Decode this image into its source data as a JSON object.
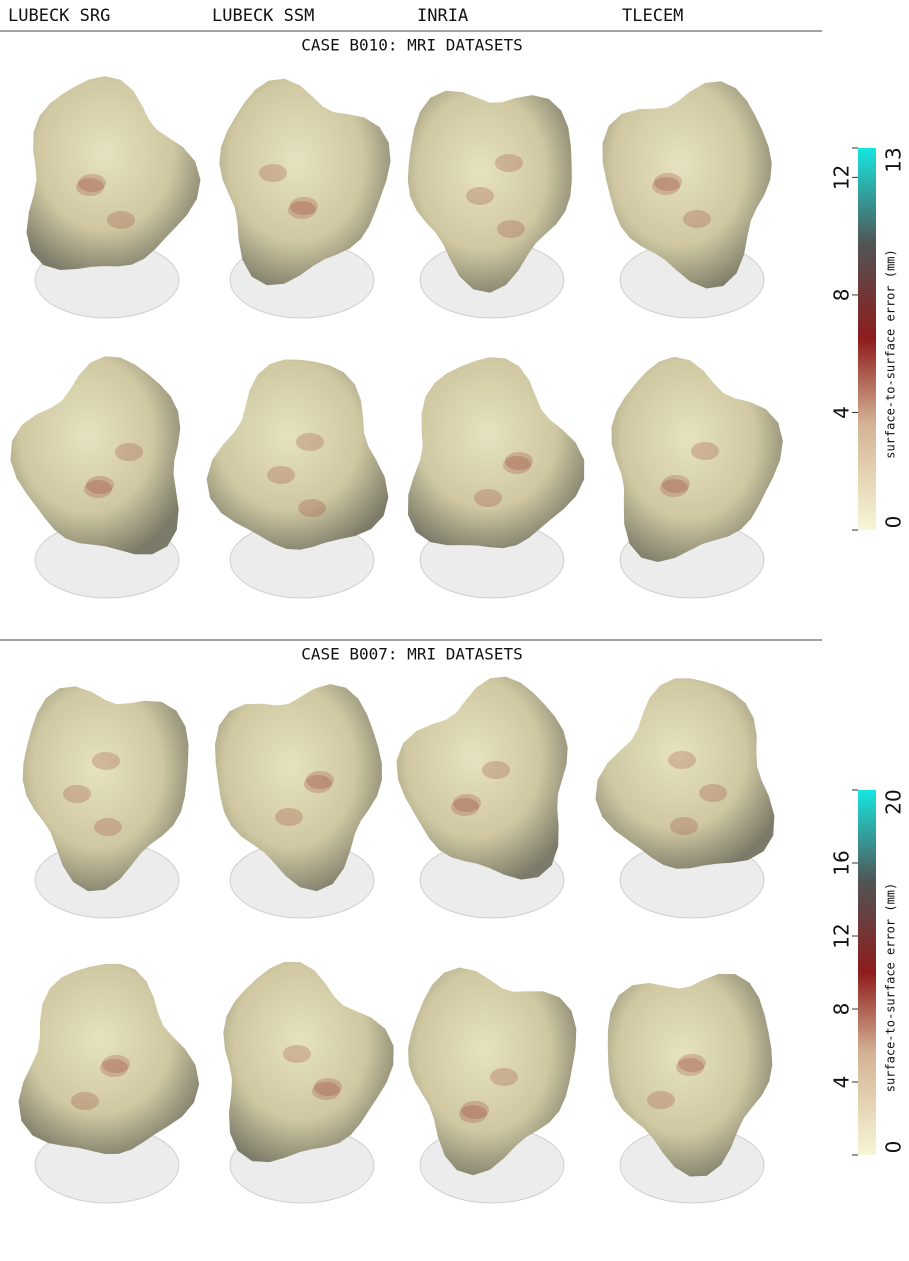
{
  "columns": [
    "LUBECK SRG",
    "LUBECK SSM",
    "INRIA",
    "TLECEM"
  ],
  "sections": [
    {
      "title": "CASE B010: MRI DATASETS",
      "colorbar": {
        "label": "surface-to-surface error (mm)",
        "min": 0,
        "max": 13,
        "ticks": [
          4,
          8,
          12
        ]
      }
    },
    {
      "title": "CASE B007: MRI DATASETS",
      "colorbar": {
        "label": "surface-to-surface error (mm)",
        "min": 0,
        "max": 20,
        "ticks": [
          4,
          8,
          12,
          16
        ]
      }
    }
  ]
}
